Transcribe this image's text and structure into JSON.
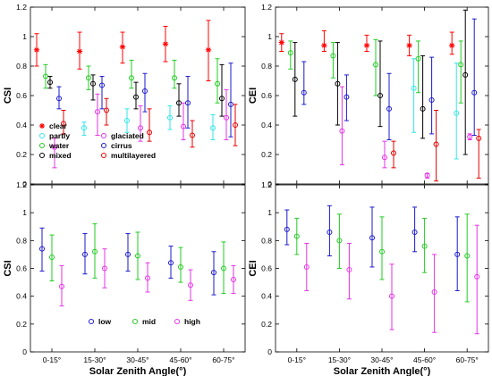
{
  "colors": {
    "clear": "#ff0000",
    "partly": "#33e6e6",
    "water": "#22cc22",
    "mixed": "#000000",
    "glaciated": "#e633e6",
    "cirrus": "#1a1acc",
    "multilayered": "#e60000",
    "low": "#1a1acc",
    "mid": "#22cc22",
    "high": "#e633e6"
  },
  "chart_data": [
    {
      "type": "scatter",
      "panel": "top-left",
      "ylabel": "CSI",
      "xlabel": "",
      "ylim": [
        0,
        1.2
      ],
      "yticks": [
        "0",
        "0.2",
        "0.4",
        "0.6",
        "0.8",
        "1",
        "1.2"
      ],
      "categories": [
        "0-15°",
        "15-30°",
        "30-45°",
        "45-60°",
        "60-75°"
      ],
      "legend": "bottom-left",
      "series": [
        {
          "name": "clear",
          "marker": "star",
          "values": [
            0.91,
            0.9,
            0.93,
            0.95,
            0.91
          ],
          "low": [
            0.8,
            0.78,
            0.82,
            0.83,
            0.7
          ],
          "high": [
            1.02,
            1.03,
            1.03,
            1.07,
            1.11
          ]
        },
        {
          "name": "partly",
          "marker": "circle",
          "values": [
            null,
            0.38,
            0.43,
            0.45,
            0.38
          ],
          "low": [
            null,
            0.33,
            0.35,
            0.37,
            0.3
          ],
          "high": [
            null,
            0.42,
            0.51,
            0.53,
            0.47
          ]
        },
        {
          "name": "water",
          "marker": "circle",
          "values": [
            0.73,
            0.72,
            0.72,
            0.72,
            0.68
          ],
          "low": [
            0.65,
            0.64,
            0.65,
            0.65,
            0.55
          ],
          "high": [
            0.81,
            0.8,
            0.84,
            0.84,
            0.85
          ]
        },
        {
          "name": "mixed",
          "marker": "circle",
          "values": [
            0.69,
            0.68,
            0.59,
            0.55,
            0.58
          ],
          "low": [
            0.65,
            0.57,
            0.51,
            0.46,
            0.46
          ],
          "high": [
            0.73,
            0.74,
            0.69,
            0.68,
            0.81
          ]
        },
        {
          "name": "glaciated",
          "marker": "circle",
          "values": [
            0.25,
            0.49,
            0.38,
            0.39,
            0.45
          ],
          "low": [
            0.11,
            0.33,
            0.29,
            0.3,
            0.3
          ],
          "high": [
            0.31,
            0.61,
            0.53,
            0.55,
            0.64
          ]
        },
        {
          "name": "cirrus",
          "marker": "circle",
          "values": [
            0.58,
            0.67,
            0.63,
            0.55,
            0.54
          ],
          "low": [
            0.51,
            0.51,
            0.49,
            0.38,
            0.32
          ],
          "high": [
            0.66,
            0.73,
            0.75,
            0.73,
            0.82
          ]
        },
        {
          "name": "multilayered",
          "marker": "circle",
          "values": [
            0.41,
            0.5,
            0.35,
            0.33,
            0.4
          ],
          "low": [
            0.34,
            0.4,
            0.29,
            0.25,
            0.26
          ],
          "high": [
            0.5,
            0.58,
            0.51,
            0.43,
            0.54
          ]
        }
      ]
    },
    {
      "type": "scatter",
      "panel": "top-right",
      "ylabel": "CEI",
      "xlabel": "",
      "ylim": [
        0,
        1.2
      ],
      "yticks": [
        "0",
        "0.2",
        "0.4",
        "0.6",
        "0.8",
        "1",
        "1.2"
      ],
      "categories": [
        "0-15°",
        "15-30°",
        "30-45°",
        "45-60°",
        "60-75°"
      ],
      "series": [
        {
          "name": "clear",
          "marker": "star",
          "values": [
            0.96,
            0.94,
            0.94,
            0.94,
            0.94
          ],
          "low": [
            0.9,
            0.9,
            0.9,
            0.87,
            0.88
          ],
          "high": [
            1.02,
            1.04,
            1.01,
            1.01,
            1.03
          ]
        },
        {
          "name": "partly",
          "marker": "circle",
          "values": [
            null,
            null,
            null,
            0.65,
            0.48
          ],
          "low": [
            null,
            null,
            null,
            0.35,
            0.17
          ],
          "high": [
            null,
            null,
            null,
            0.85,
            0.82
          ]
        },
        {
          "name": "water",
          "marker": "circle",
          "values": [
            0.89,
            0.87,
            0.81,
            0.85,
            0.81
          ],
          "low": [
            0.78,
            0.72,
            0.6,
            0.62,
            0.55
          ],
          "high": [
            0.97,
            0.96,
            0.98,
            0.97,
            0.97
          ]
        },
        {
          "name": "mixed",
          "marker": "circle",
          "values": [
            0.71,
            0.68,
            0.6,
            0.51,
            0.74
          ],
          "low": [
            0.46,
            0.4,
            0.39,
            0.31,
            0.2
          ],
          "high": [
            0.96,
            0.96,
            0.97,
            0.87,
            1.18
          ]
        },
        {
          "name": "glaciated",
          "marker": "circle",
          "values": [
            null,
            0.36,
            0.18,
            0.06,
            0.32
          ],
          "low": [
            null,
            0.13,
            0.11,
            0.04,
            0.3
          ],
          "high": [
            null,
            0.66,
            0.29,
            0.07,
            0.34
          ]
        },
        {
          "name": "cirrus",
          "marker": "circle",
          "values": [
            0.62,
            0.59,
            0.51,
            0.57,
            0.62
          ],
          "low": [
            0.54,
            0.43,
            0.3,
            0.34,
            0.33
          ],
          "high": [
            0.83,
            0.74,
            0.75,
            0.86,
            1.12
          ]
        },
        {
          "name": "multilayered",
          "marker": "circle",
          "values": [
            null,
            null,
            0.21,
            0.27,
            0.31
          ],
          "low": [
            null,
            null,
            0.11,
            0.02,
            0.04
          ],
          "high": [
            null,
            null,
            0.29,
            0.5,
            0.37
          ]
        }
      ]
    },
    {
      "type": "scatter",
      "panel": "bottom-left",
      "ylabel": "CSI",
      "xlabel": "Solar Zenith Angle(°)",
      "ylim": [
        0,
        1.2
      ],
      "yticks": [
        "0",
        "0.2",
        "0.4",
        "0.6",
        "0.8",
        "1",
        "1.2"
      ],
      "categories": [
        "0-15°",
        "15-30°",
        "30-45°",
        "45-60°",
        "60-75°"
      ],
      "legend": "bottom-right",
      "series": [
        {
          "name": "low",
          "marker": "circle",
          "values": [
            0.74,
            0.7,
            0.7,
            0.64,
            0.57
          ],
          "low": [
            0.58,
            0.56,
            0.58,
            0.53,
            0.41
          ],
          "high": [
            0.89,
            0.85,
            0.85,
            0.76,
            0.72
          ]
        },
        {
          "name": "mid",
          "marker": "circle",
          "values": [
            0.68,
            0.72,
            0.69,
            0.61,
            0.6
          ],
          "low": [
            0.51,
            0.53,
            0.52,
            0.5,
            0.42
          ],
          "high": [
            0.84,
            0.92,
            0.86,
            0.75,
            0.79
          ]
        },
        {
          "name": "high",
          "marker": "circle",
          "values": [
            0.47,
            0.6,
            0.53,
            0.48,
            0.52
          ],
          "low": [
            0.33,
            0.46,
            0.43,
            0.37,
            0.42
          ],
          "high": [
            0.62,
            0.74,
            0.64,
            0.59,
            0.62
          ]
        }
      ]
    },
    {
      "type": "scatter",
      "panel": "bottom-right",
      "ylabel": "CEI",
      "xlabel": "Solar Zenith Angle(°)",
      "ylim": [
        0,
        1.2
      ],
      "yticks": [
        "0",
        "0.2",
        "0.4",
        "0.6",
        "0.8",
        "1",
        "1.2"
      ],
      "categories": [
        "0-15°",
        "15-30°",
        "30-45°",
        "45-60°",
        "60-75°"
      ],
      "series": [
        {
          "name": "low",
          "marker": "circle",
          "values": [
            0.88,
            0.86,
            0.82,
            0.86,
            0.7
          ],
          "low": [
            0.77,
            0.69,
            0.61,
            0.72,
            0.44
          ],
          "high": [
            1.02,
            1.05,
            1.04,
            1.04,
            0.97
          ]
        },
        {
          "name": "mid",
          "marker": "circle",
          "values": [
            0.83,
            0.8,
            0.72,
            0.76,
            0.69
          ],
          "low": [
            0.7,
            0.6,
            0.52,
            0.57,
            0.36
          ],
          "high": [
            0.96,
            0.99,
            0.97,
            0.96,
            0.99
          ]
        },
        {
          "name": "high",
          "marker": "circle",
          "values": [
            0.61,
            0.59,
            0.4,
            0.43,
            0.54
          ],
          "low": [
            0.44,
            0.38,
            0.16,
            0.14,
            0.13
          ],
          "high": [
            0.78,
            0.78,
            0.63,
            0.7,
            0.91
          ]
        }
      ]
    }
  ]
}
